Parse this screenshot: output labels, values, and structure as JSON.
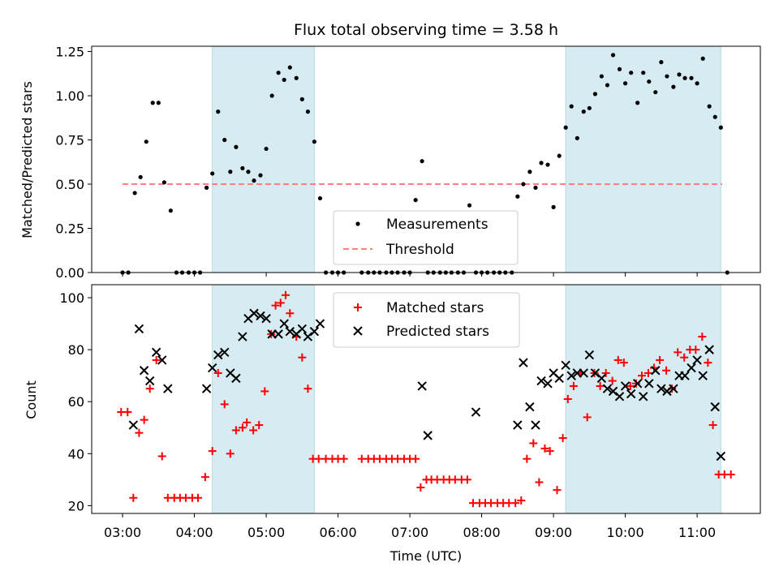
{
  "chart_data": [
    {
      "type": "scatter",
      "title": "Flux total observing time = 3.58 h",
      "xlabel": "",
      "ylabel": "Matched/Predicted stars",
      "x_unit": "hours (UTC)",
      "xlim": [
        2.57,
        11.88
      ],
      "ylim": [
        0,
        1.28
      ],
      "yticks": [
        "0.00",
        "0.25",
        "0.50",
        "0.75",
        "1.00",
        "1.25"
      ],
      "threshold": {
        "name": "Threshold",
        "value": 0.5,
        "x_range": [
          3.0,
          11.35
        ],
        "color": "#ff7f7f"
      },
      "shaded_regions": [
        [
          4.25,
          5.67
        ],
        [
          9.17,
          11.33
        ]
      ],
      "legend": {
        "placement": "lower-center"
      },
      "series": [
        {
          "name": "Measurements",
          "color": "#000000",
          "marker": "dot",
          "x": [
            3.0,
            3.08,
            3.17,
            3.25,
            3.33,
            3.42,
            3.5,
            3.58,
            3.67,
            3.75,
            3.83,
            3.92,
            4.0,
            4.08,
            4.17,
            4.25,
            4.33,
            4.42,
            4.5,
            4.58,
            4.67,
            4.75,
            4.83,
            4.92,
            5.0,
            5.08,
            5.17,
            5.25,
            5.33,
            5.42,
            5.5,
            5.58,
            5.67,
            5.75,
            5.83,
            5.92,
            6.0,
            6.08,
            6.33,
            6.42,
            6.5,
            6.58,
            6.67,
            6.75,
            6.83,
            6.92,
            7.0,
            7.08,
            7.17,
            7.25,
            7.33,
            7.42,
            7.5,
            7.58,
            7.67,
            7.75,
            7.83,
            7.92,
            8.0,
            8.08,
            8.17,
            8.25,
            8.33,
            8.42,
            8.5,
            8.58,
            8.67,
            8.75,
            8.83,
            8.92,
            9.0,
            9.08,
            9.17,
            9.25,
            9.33,
            9.42,
            9.5,
            9.58,
            9.67,
            9.75,
            9.83,
            9.92,
            10.0,
            10.08,
            10.17,
            10.25,
            10.33,
            10.42,
            10.5,
            10.58,
            10.67,
            10.75,
            10.83,
            10.92,
            11.0,
            11.08,
            11.17,
            11.25,
            11.33,
            11.42
          ],
          "y": [
            0.0,
            0.0,
            0.45,
            0.54,
            0.74,
            0.96,
            0.96,
            0.51,
            0.35,
            0.0,
            0.0,
            0.0,
            0.0,
            0.0,
            0.48,
            0.56,
            0.91,
            0.75,
            0.57,
            0.71,
            0.59,
            0.57,
            0.52,
            0.55,
            0.7,
            1.0,
            1.13,
            1.09,
            1.16,
            1.1,
            0.98,
            0.91,
            0.74,
            0.42,
            0.0,
            0.0,
            0.0,
            0.0,
            0.0,
            0.0,
            0.0,
            0.0,
            0.0,
            0.0,
            0.0,
            0.0,
            0.0,
            0.41,
            0.63,
            0.0,
            0.0,
            0.0,
            0.0,
            0.0,
            0.0,
            0.0,
            0.38,
            0.0,
            0.0,
            0.0,
            0.0,
            0.0,
            0.0,
            0.0,
            0.43,
            0.5,
            0.57,
            0.48,
            0.62,
            0.61,
            0.37,
            0.66,
            0.82,
            0.94,
            0.76,
            0.91,
            0.93,
            1.01,
            1.11,
            1.06,
            1.23,
            1.15,
            1.07,
            1.13,
            0.96,
            1.13,
            1.08,
            1.02,
            1.19,
            1.11,
            1.05,
            1.12,
            1.1,
            1.1,
            1.07,
            1.21,
            0.94,
            0.88,
            0.82,
            0.0
          ]
        }
      ]
    },
    {
      "type": "scatter",
      "title": "",
      "xlabel": "Time (UTC)",
      "ylabel": "Count",
      "x_unit": "hours (UTC)",
      "xlim": [
        2.57,
        11.88
      ],
      "ylim": [
        17,
        105
      ],
      "yticks": [
        "20",
        "40",
        "60",
        "80",
        "100"
      ],
      "xticks": [
        "03:00",
        "04:00",
        "05:00",
        "06:00",
        "07:00",
        "08:00",
        "09:00",
        "10:00",
        "11:00"
      ],
      "shaded_regions": [
        [
          4.25,
          5.67
        ],
        [
          9.17,
          11.33
        ]
      ],
      "legend": {
        "placement": "upper-center"
      },
      "series": [
        {
          "name": "Matched stars",
          "color": "#ff0000",
          "marker": "plus",
          "x": [
            2.98,
            3.07,
            3.15,
            3.23,
            3.3,
            3.38,
            3.47,
            3.55,
            3.63,
            3.72,
            3.8,
            3.88,
            3.97,
            4.05,
            4.15,
            4.25,
            4.33,
            4.42,
            4.5,
            4.58,
            4.67,
            4.73,
            4.82,
            4.9,
            4.98,
            5.07,
            5.13,
            5.2,
            5.27,
            5.33,
            5.42,
            5.5,
            5.58,
            5.65,
            5.73,
            5.83,
            5.92,
            6.0,
            6.08,
            6.33,
            6.42,
            6.5,
            6.58,
            6.67,
            6.75,
            6.83,
            6.92,
            7.0,
            7.08,
            7.15,
            7.23,
            7.3,
            7.38,
            7.47,
            7.55,
            7.63,
            7.72,
            7.8,
            7.88,
            7.97,
            8.05,
            8.13,
            8.22,
            8.3,
            8.38,
            8.47,
            8.55,
            8.63,
            8.72,
            8.8,
            8.88,
            8.95,
            9.05,
            9.13,
            9.2,
            9.28,
            9.38,
            9.47,
            9.57,
            9.65,
            9.73,
            9.82,
            9.9,
            9.98,
            10.07,
            10.15,
            10.23,
            10.32,
            10.4,
            10.48,
            10.57,
            10.65,
            10.73,
            10.82,
            10.9,
            10.98,
            11.07,
            11.15,
            11.22,
            11.3,
            11.38,
            11.47
          ],
          "y": [
            56,
            56,
            23,
            48,
            53,
            65,
            76,
            39,
            23,
            23,
            23,
            23,
            23,
            23,
            31,
            41,
            71,
            59,
            40,
            49,
            50,
            52,
            49,
            51,
            64,
            86,
            97,
            98,
            101,
            94,
            85,
            77,
            65,
            38,
            38,
            38,
            38,
            38,
            38,
            38,
            38,
            38,
            38,
            38,
            38,
            38,
            38,
            38,
            38,
            27,
            30,
            30,
            30,
            30,
            30,
            30,
            30,
            30,
            21,
            21,
            21,
            21,
            21,
            21,
            21,
            21,
            22,
            38,
            44,
            29,
            42,
            41,
            26,
            46,
            61,
            66,
            71,
            54,
            71,
            66,
            71,
            68,
            76,
            75,
            66,
            67,
            70,
            71,
            73,
            76,
            72,
            65,
            79,
            77,
            80,
            80,
            85,
            75,
            51,
            32,
            32,
            32
          ]
        },
        {
          "name": "Predicted stars",
          "color": "#000000",
          "marker": "x",
          "x": [
            3.15,
            3.23,
            3.3,
            3.38,
            3.47,
            3.55,
            3.63,
            4.17,
            4.25,
            4.33,
            4.42,
            4.5,
            4.58,
            4.67,
            4.75,
            4.83,
            4.92,
            5.0,
            5.08,
            5.17,
            5.25,
            5.33,
            5.42,
            5.5,
            5.58,
            5.67,
            5.75,
            7.17,
            7.25,
            7.92,
            8.5,
            8.58,
            8.67,
            8.75,
            8.83,
            8.92,
            9.0,
            9.08,
            9.17,
            9.25,
            9.33,
            9.42,
            9.5,
            9.58,
            9.67,
            9.75,
            9.83,
            9.92,
            10.0,
            10.08,
            10.17,
            10.25,
            10.33,
            10.42,
            10.5,
            10.58,
            10.67,
            10.75,
            10.83,
            10.92,
            11.0,
            11.08,
            11.17,
            11.25,
            11.33
          ],
          "y": [
            51,
            88,
            72,
            68,
            79,
            76,
            65,
            65,
            73,
            78,
            79,
            71,
            69,
            85,
            92,
            94,
            93,
            92,
            86,
            86,
            90,
            87,
            86,
            88,
            85,
            87,
            90,
            66,
            47,
            56,
            51,
            75,
            58,
            51,
            68,
            67,
            71,
            69,
            74,
            70,
            71,
            71,
            78,
            71,
            69,
            65,
            64,
            62,
            66,
            63,
            67,
            62,
            67,
            72,
            65,
            64,
            65,
            70,
            70,
            73,
            76,
            70,
            80,
            58,
            39
          ]
        }
      ]
    }
  ]
}
